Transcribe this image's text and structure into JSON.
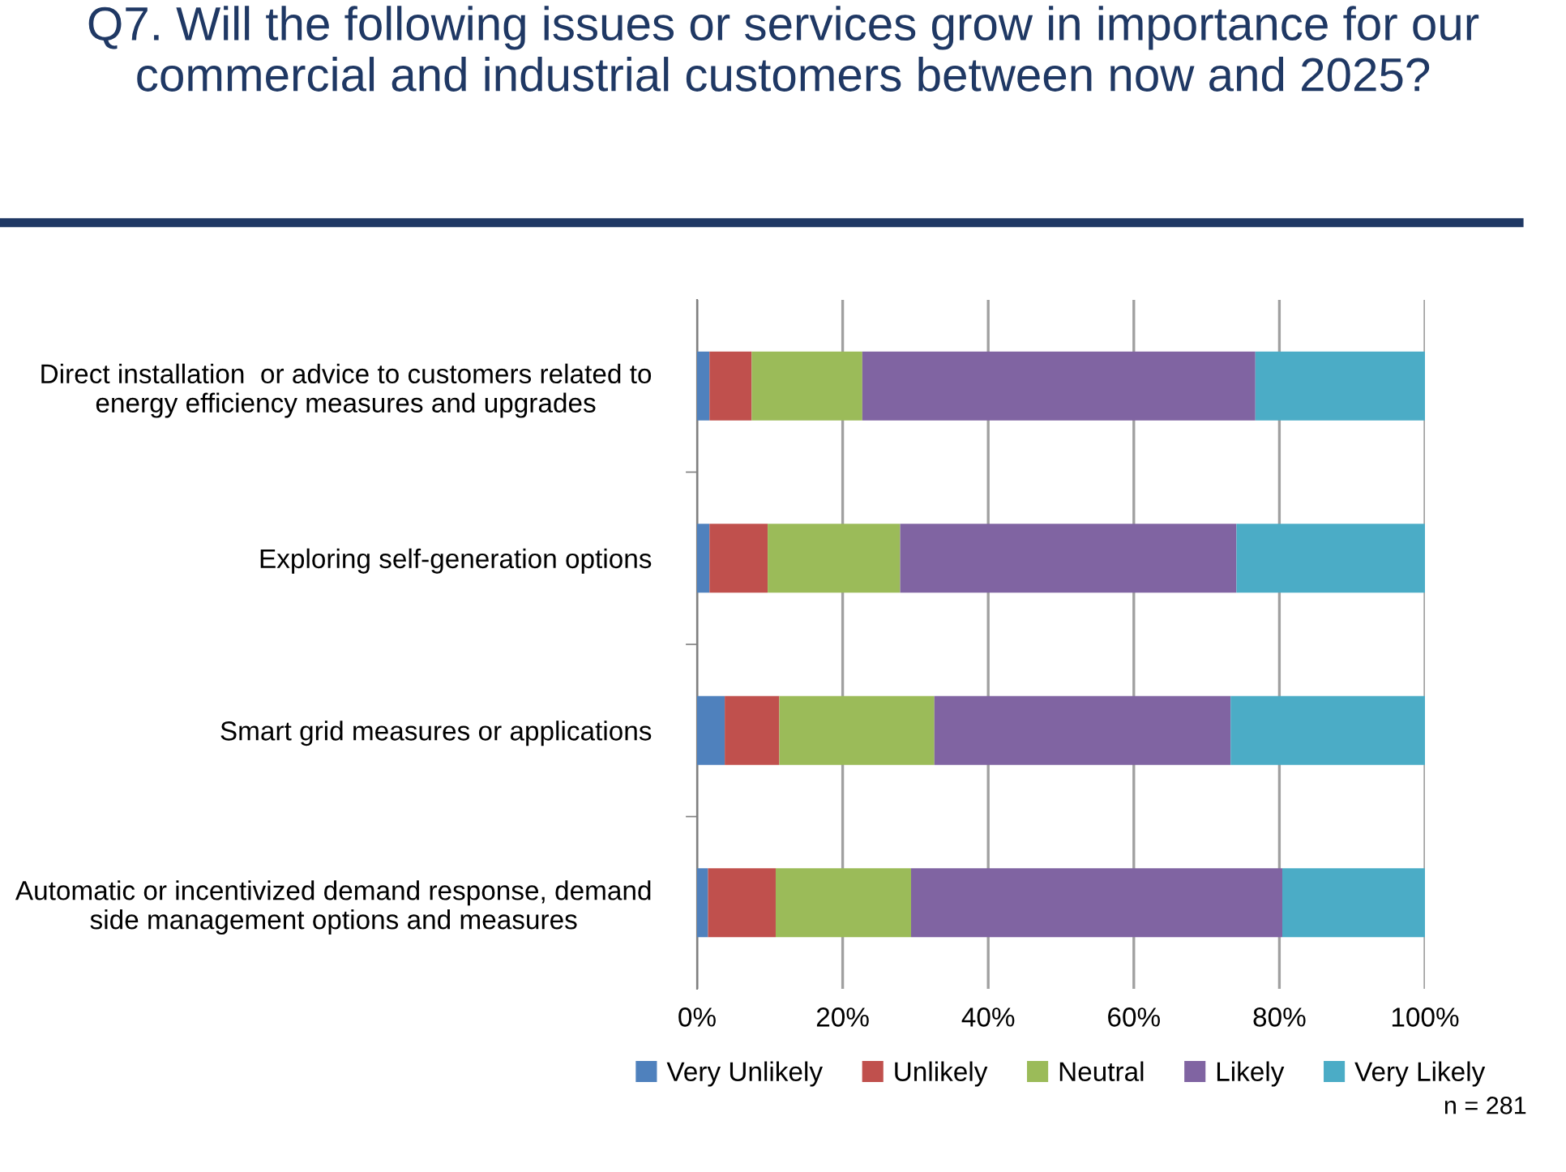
{
  "chart_data": {
    "type": "bar",
    "orientation": "horizontal",
    "stacked": true,
    "title": "Q7. Will the following issues or services grow in importance for our commercial and industrial customers between now and 2025?",
    "categories": [
      "Direct installation  or advice to customers related to energy efficiency measures and upgrades",
      "Exploring self-generation options",
      "Smart grid measures or applications",
      "Automatic or incentivized demand response, demand side management options and measures"
    ],
    "series": [
      {
        "name": "Very Unlikely",
        "color": "#4f81bd",
        "values": [
          1.7,
          1.7,
          3.8,
          1.5
        ]
      },
      {
        "name": "Unlikely",
        "color": "#c0504d",
        "values": [
          5.8,
          8.0,
          7.5,
          9.3
        ]
      },
      {
        "name": "Neutral",
        "color": "#9bbb59",
        "values": [
          15.2,
          18.2,
          21.3,
          18.6
        ]
      },
      {
        "name": "Likely",
        "color": "#8064a2",
        "values": [
          54.0,
          46.2,
          40.7,
          51.0
        ]
      },
      {
        "name": "Very Likely",
        "color": "#4bacc6",
        "values": [
          23.3,
          25.9,
          26.7,
          19.6
        ]
      }
    ],
    "xlim": [
      0,
      100
    ],
    "xticks": [
      {
        "value": 0,
        "label": "0%"
      },
      {
        "value": 20,
        "label": "20%"
      },
      {
        "value": 40,
        "label": "40%"
      },
      {
        "value": 60,
        "label": "60%"
      },
      {
        "value": 80,
        "label": "80%"
      },
      {
        "value": 100,
        "label": "100%"
      }
    ],
    "grid": "x",
    "legend": "bottom",
    "annotations": [
      "n = 281"
    ]
  }
}
